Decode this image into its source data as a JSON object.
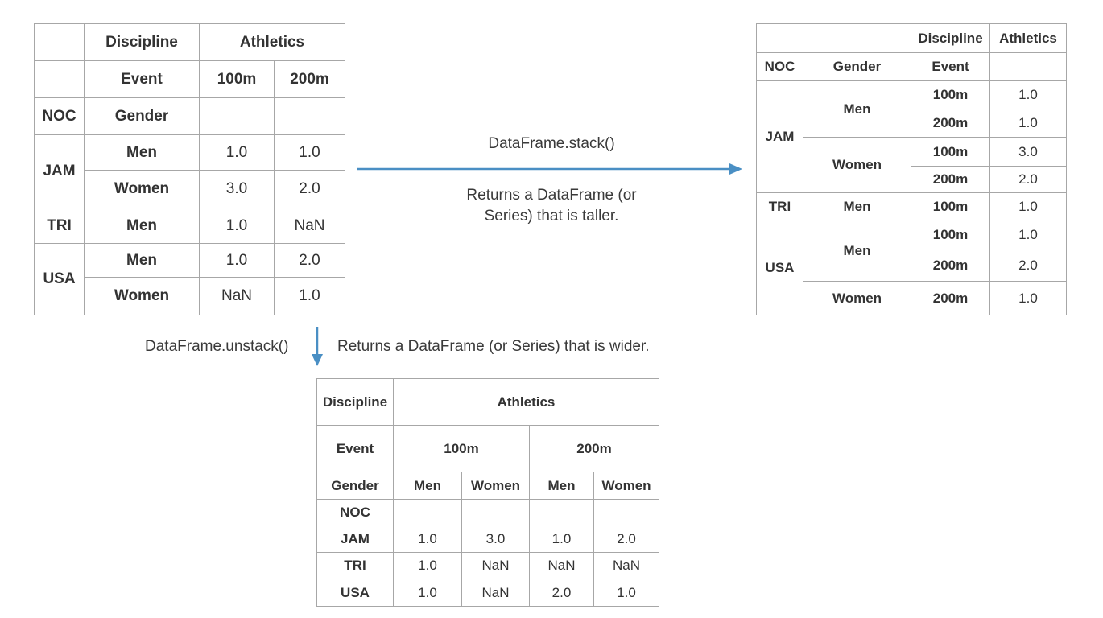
{
  "wide_table": {
    "header_discipline": "Discipline",
    "header_athletics": "Athletics",
    "header_event": "Event",
    "event_100": "100m",
    "event_200": "200m",
    "header_noc": "NOC",
    "header_gender": "Gender",
    "rows": [
      {
        "noc": "JAM",
        "gender": "Men",
        "v100": "1.0",
        "v200": "1.0"
      },
      {
        "noc": "",
        "gender": "Women",
        "v100": "3.0",
        "v200": "2.0"
      },
      {
        "noc": "TRI",
        "gender": "Men",
        "v100": "1.0",
        "v200": "NaN"
      },
      {
        "noc": "USA",
        "gender": "Men",
        "v100": "1.0",
        "v200": "2.0"
      },
      {
        "noc": "",
        "gender": "Women",
        "v100": "NaN",
        "v200": "1.0"
      }
    ]
  },
  "stack": {
    "method": "DataFrame.stack()",
    "description": "Returns a DataFrame (or Series) that is taller.",
    "arrow_color": "#4a8fc4"
  },
  "unstack": {
    "method": "DataFrame.unstack()",
    "description": "Returns a DataFrame (or Series) that is wider.",
    "arrow_color": "#4a8fc4"
  },
  "tall_table": {
    "header_discipline": "Discipline",
    "header_athletics": "Athletics",
    "header_noc": "NOC",
    "header_gender": "Gender",
    "header_event": "Event",
    "rows": [
      {
        "noc": "JAM",
        "gender": "Men",
        "event": "100m",
        "value": "1.0"
      },
      {
        "noc": "",
        "gender": "",
        "event": "200m",
        "value": "1.0"
      },
      {
        "noc": "",
        "gender": "Women",
        "event": "100m",
        "value": "3.0"
      },
      {
        "noc": "",
        "gender": "",
        "event": "200m",
        "value": "2.0"
      },
      {
        "noc": "TRI",
        "gender": "Men",
        "event": "100m",
        "value": "1.0"
      },
      {
        "noc": "USA",
        "gender": "Men",
        "event": "100m",
        "value": "1.0"
      },
      {
        "noc": "",
        "gender": "",
        "event": "200m",
        "value": "2.0"
      },
      {
        "noc": "",
        "gender": "Women",
        "event": "200m",
        "value": "1.0"
      }
    ]
  },
  "unstacked_table": {
    "header_discipline": "Discipline",
    "header_athletics": "Athletics",
    "header_event": "Event",
    "event_100": "100m",
    "event_200": "200m",
    "header_gender": "Gender",
    "genders": [
      "Men",
      "Women",
      "Men",
      "Women"
    ],
    "header_noc": "NOC",
    "rows": [
      {
        "noc": "JAM",
        "values": [
          "1.0",
          "3.0",
          "1.0",
          "2.0"
        ]
      },
      {
        "noc": "TRI",
        "values": [
          "1.0",
          "NaN",
          "NaN",
          "NaN"
        ]
      },
      {
        "noc": "USA",
        "values": [
          "1.0",
          "NaN",
          "2.0",
          "1.0"
        ]
      }
    ]
  }
}
